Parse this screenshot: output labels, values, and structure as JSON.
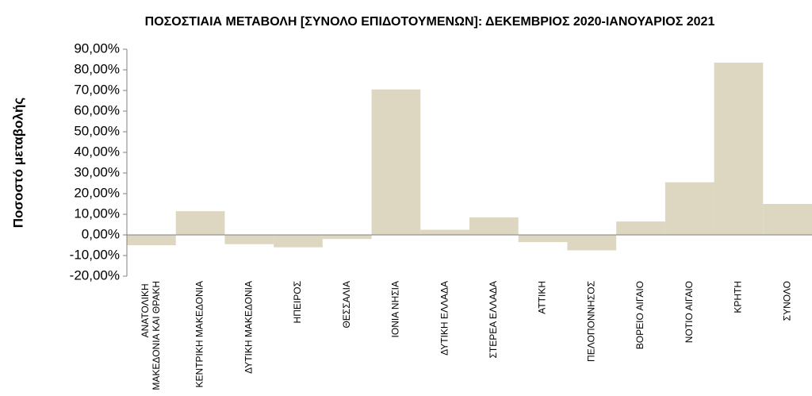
{
  "chart_data": {
    "type": "bar",
    "title": "ΠΟΣΟΣΤΙΑΙΑ ΜΕΤΑΒΟΛΗ [ΣΥΝΟΛΟ ΕΠΙΔΟΤΟΥΜΕΝΩΝ]: ΔΕΚΕΜΒΡΙΟΣ 2020-ΙΑΝΟΥΑΡΙΟΣ 2021",
    "y_label": "Ποσοστό μεταβολής",
    "categories": [
      "ΑΝΑΤΟΛΙΚΗ ΜΑΚΕΔΟΝΙΑ ΚΑΙ ΘΡΑΚΗ",
      "ΚΕΝΤΡΙΚΗ ΜΑΚΕΔΟΝΙΑ",
      "ΔΥΤΙΚΗ ΜΑΚΕΔΟΝΙΑ",
      "ΗΠΕΙΡΟΣ",
      "ΘΕΣΣΑΛΙΑ",
      "ΙΟΝΙΑ ΝΗΣΙΑ",
      "ΔΥΤΙΚΗ ΕΛΛΑΔΑ",
      "ΣΤΕΡΕΑ ΕΛΛΑΔΑ",
      "ΑΤΤΙΚΗ",
      "ΠΕΛΟΠΟΝΝΗΣΟΣ",
      "ΒΟΡΕΙΟ ΑΙΓΑΙΟ",
      "ΝΟΤΙΟ ΑΙΓΑΙΟ",
      "ΚΡΗΤΗ",
      "ΣΥΝΟΛΟ"
    ],
    "values": [
      -5,
      11.5,
      -4.5,
      -6,
      -2,
      70.5,
      2.5,
      8.5,
      -3.5,
      -7.5,
      6.5,
      25.5,
      83.5,
      15
    ],
    "color": "#ddd7c1",
    "ylim": [
      -20,
      90
    ],
    "yticks": [
      {
        "value": -20,
        "label": "-20,00%"
      },
      {
        "value": -10,
        "label": "-10,00%"
      },
      {
        "value": 0,
        "label": "0,00%"
      },
      {
        "value": 10,
        "label": "10,00%"
      },
      {
        "value": 20,
        "label": "20,00%"
      },
      {
        "value": 30,
        "label": "30,00%"
      },
      {
        "value": 40,
        "label": "40,00%"
      },
      {
        "value": 50,
        "label": "50,00%"
      },
      {
        "value": 60,
        "label": "60,00%"
      },
      {
        "value": 70,
        "label": "70,00%"
      },
      {
        "value": 80,
        "label": "80,00%"
      },
      {
        "value": 90,
        "label": "90,00%"
      }
    ],
    "grid": false
  }
}
